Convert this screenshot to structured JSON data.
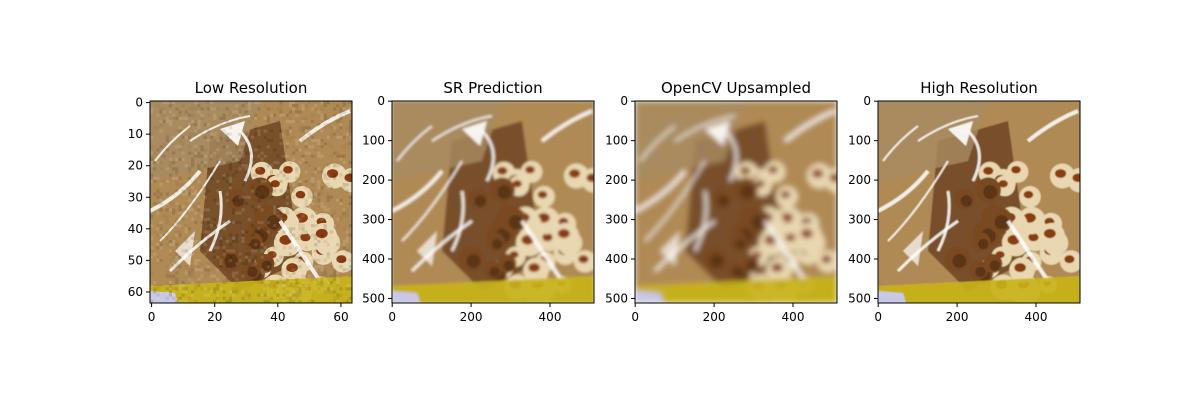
{
  "figure": {
    "panels": [
      {
        "title": "Low Resolution",
        "image_kind": "low"
      },
      {
        "title": "SR Prediction",
        "image_kind": "sr"
      },
      {
        "title": "OpenCV Upsampled",
        "image_kind": "upsampled"
      },
      {
        "title": "High Resolution",
        "image_kind": "high"
      }
    ]
  },
  "chart_data": [
    {
      "type": "image",
      "title": "Low Resolution",
      "xlim": [
        0,
        63
      ],
      "ylim": [
        63,
        0
      ],
      "xticks": [
        0,
        20,
        40,
        60
      ],
      "yticks": [
        0,
        10,
        20,
        30,
        40,
        50,
        60
      ],
      "content": "pixelated low-resolution image of pastry puffs in a clear plastic bag"
    },
    {
      "type": "image",
      "title": "SR Prediction",
      "xlim": [
        0,
        511
      ],
      "ylim": [
        511,
        0
      ],
      "xticks": [
        0,
        200,
        400
      ],
      "yticks": [
        0,
        100,
        200,
        300,
        400,
        500
      ],
      "content": "super-resolved image of pastry puffs in a clear plastic bag"
    },
    {
      "type": "image",
      "title": "OpenCV Upsampled",
      "xlim": [
        0,
        511
      ],
      "ylim": [
        511,
        0
      ],
      "xticks": [
        0,
        200,
        400
      ],
      "yticks": [
        0,
        100,
        200,
        300,
        400,
        500
      ],
      "content": "bicubic-upsampled blurry image of pastry puffs in a clear plastic bag"
    },
    {
      "type": "image",
      "title": "High Resolution",
      "xlim": [
        0,
        511
      ],
      "ylim": [
        511,
        0
      ],
      "xticks": [
        0,
        200,
        400
      ],
      "yticks": [
        0,
        100,
        200,
        300,
        400,
        500
      ],
      "content": "sharp high-resolution image of pastry puffs in a clear plastic bag"
    }
  ],
  "colors": {
    "background_tan": "#b08a55",
    "dark_brown": "#5a3414",
    "cream": "#e8d7b0",
    "highlight": "#ffffff",
    "yellow_strip": "#c8b418",
    "lavender": "#c9c8e8"
  }
}
